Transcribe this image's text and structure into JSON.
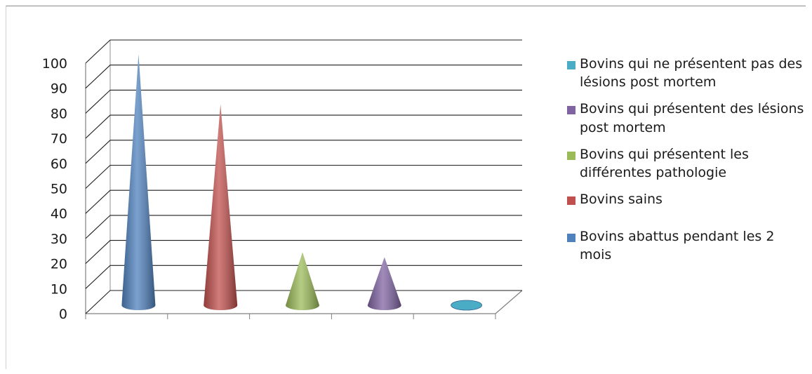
{
  "chart_data": {
    "type": "bar",
    "shape": "3d-cone",
    "title": "",
    "xlabel": "",
    "ylabel": "",
    "ylim": [
      0,
      100
    ],
    "y_ticks": [
      0,
      10,
      20,
      30,
      40,
      50,
      60,
      70,
      80,
      90,
      100
    ],
    "grid": true,
    "legend_position": "right",
    "series": [
      {
        "name": "Bovins abattus pendant les 2 mois",
        "value": 100,
        "color": "#4f81bd"
      },
      {
        "name": "Bovins sains",
        "value": 80,
        "color": "#c0504d"
      },
      {
        "name": "Bovins qui présentent les différentes pathologie",
        "value": 21,
        "color": "#9bbb59"
      },
      {
        "name": "Bovins qui présentent des lésions post mortem",
        "value": 19,
        "color": "#8064a2"
      },
      {
        "name": "Bovins qui ne présentent pas des lésions post mortem",
        "value": 1,
        "color": "#4bacc6"
      }
    ],
    "legend": [
      {
        "label": "Bovins qui ne présentent pas des lésions post mortem",
        "color": "#4bacc6"
      },
      {
        "label": "Bovins qui présentent des lésions post mortem",
        "color": "#8064a2"
      },
      {
        "label": "Bovins qui présentent les différentes pathologie",
        "color": "#9bbb59"
      },
      {
        "label": "Bovins sains",
        "color": "#c0504d"
      },
      {
        "label": "Bovins abattus pendant les 2 mois",
        "color": "#4f81bd"
      }
    ]
  }
}
